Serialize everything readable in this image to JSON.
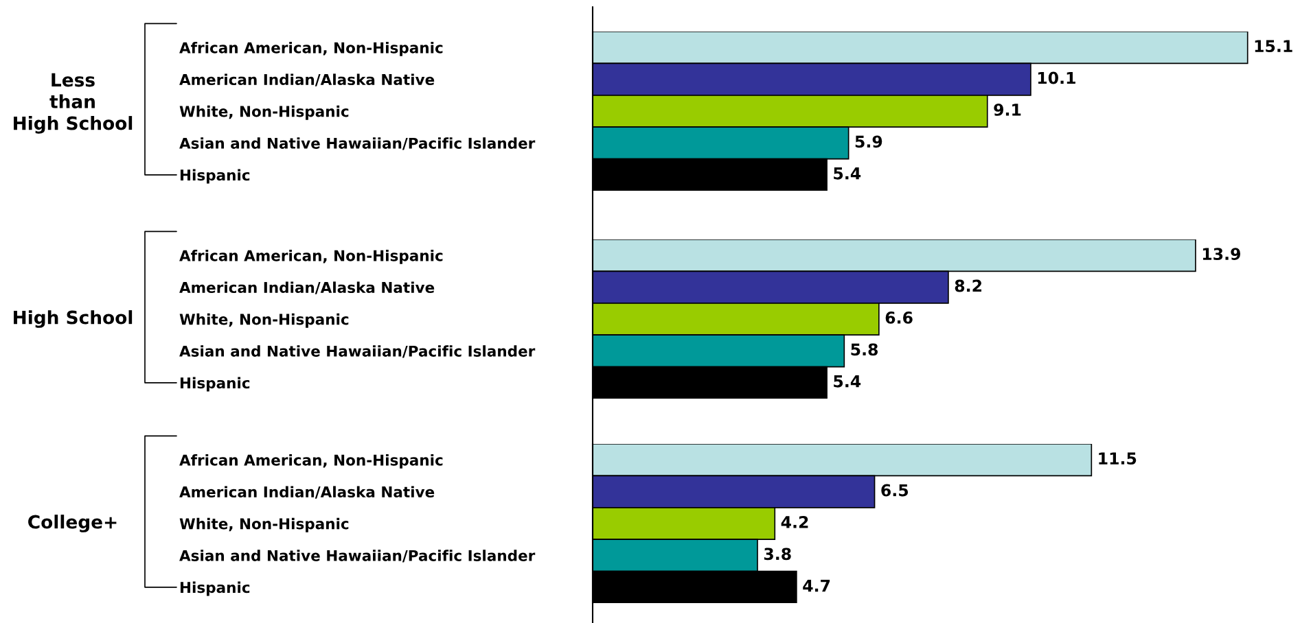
{
  "chart_data": [
    {
      "type": "bar",
      "orientation": "horizontal",
      "ylabel": "Less\nthan\nHigh School",
      "categories": [
        "African American, Non-Hispanic",
        "American Indian/Alaska Native",
        "White, Non-Hispanic",
        "Asian and Native Hawaiian/Pacific Islander",
        "Hispanic"
      ],
      "values": [
        15.1,
        10.1,
        9.1,
        5.9,
        5.4
      ],
      "colors": [
        "#b9e1e3",
        "#333399",
        "#99cc00",
        "#009999",
        "#000000"
      ],
      "data_labels": true,
      "tick_labels": "y",
      "grid": false,
      "legend": false
    },
    {
      "type": "bar",
      "orientation": "horizontal",
      "ylabel": "High School",
      "categories": [
        "African American, Non-Hispanic",
        "American Indian/Alaska Native",
        "White, Non-Hispanic",
        "Asian and Native Hawaiian/Pacific Islander",
        "Hispanic"
      ],
      "values": [
        13.9,
        8.2,
        6.6,
        5.8,
        5.4
      ],
      "colors": [
        "#b9e1e3",
        "#333399",
        "#99cc00",
        "#009999",
        "#000000"
      ],
      "data_labels": true,
      "tick_labels": "y",
      "grid": false,
      "legend": false
    },
    {
      "type": "bar",
      "orientation": "horizontal",
      "ylabel": "College+",
      "categories": [
        "African American, Non-Hispanic",
        "American Indian/Alaska Native",
        "White, Non-Hispanic",
        "Asian and Native Hawaiian/Pacific Islander",
        "Hispanic"
      ],
      "values": [
        11.5,
        6.5,
        4.2,
        3.8,
        4.7
      ],
      "colors": [
        "#b9e1e3",
        "#333399",
        "#99cc00",
        "#009999",
        "#000000"
      ],
      "data_labels": true,
      "tick_labels": "y",
      "grid": false,
      "legend": false
    }
  ]
}
